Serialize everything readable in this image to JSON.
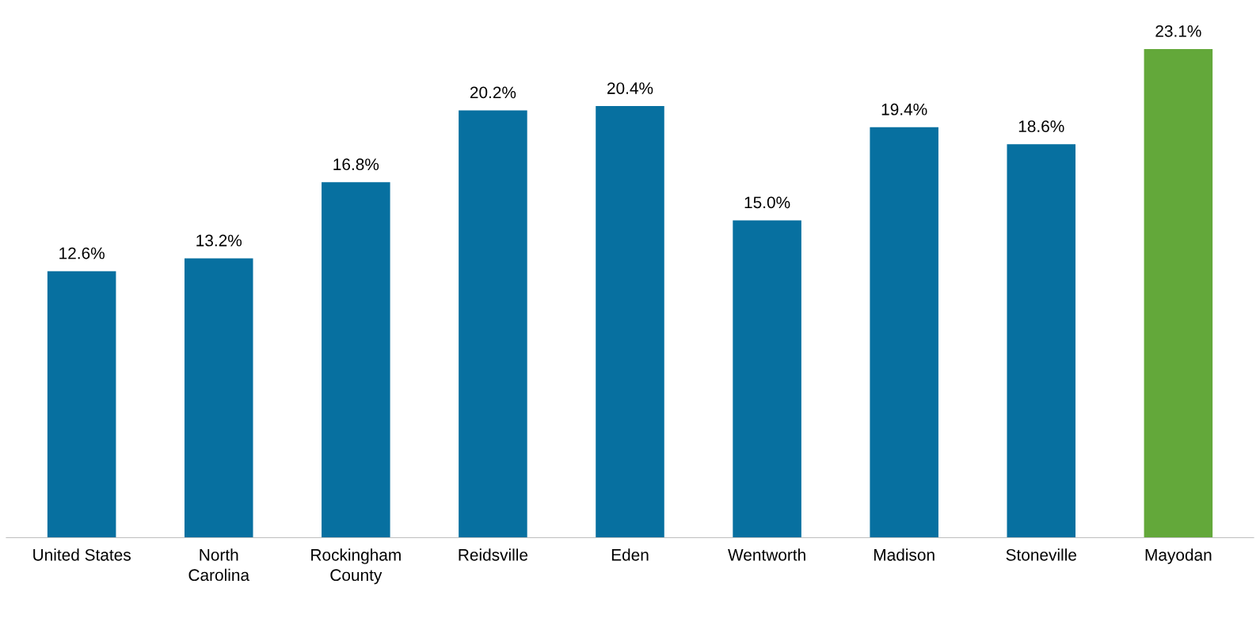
{
  "chart_data": {
    "type": "bar",
    "categories": [
      "United States",
      "North\nCarolina",
      "Rockingham\nCounty",
      "Reidsville",
      "Eden",
      "Wentworth",
      "Madison",
      "Stoneville",
      "Mayodan"
    ],
    "values": [
      12.6,
      13.2,
      16.8,
      20.2,
      20.4,
      15.0,
      19.4,
      18.6,
      23.1
    ],
    "colors": [
      "#0770a0",
      "#0770a0",
      "#0770a0",
      "#0770a0",
      "#0770a0",
      "#0770a0",
      "#0770a0",
      "#0770a0",
      "#63a83a"
    ],
    "value_labels": [
      "12.6%",
      "13.2%",
      "16.8%",
      "20.2%",
      "20.4%",
      "15.0%",
      "19.4%",
      "18.6%",
      "23.1%"
    ],
    "grid": false,
    "legend": false
  }
}
